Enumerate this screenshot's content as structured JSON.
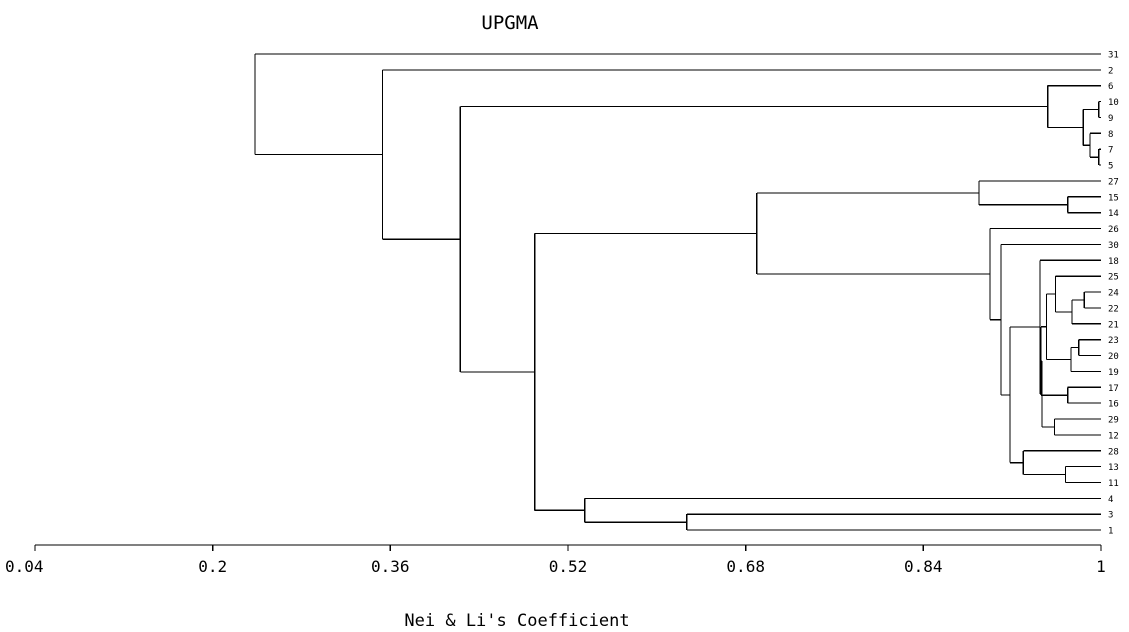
{
  "chart_data": {
    "type": "dendrogram",
    "title": "UPGMA",
    "xlabel": "Nei & Li's Coefficient",
    "xlim": [
      0.04,
      1
    ],
    "ticks": [
      0.04,
      0.2,
      0.36,
      0.52,
      0.68,
      0.84,
      1
    ],
    "tick_labels": [
      "0.04",
      "0.2",
      "0.36",
      "0.52",
      "0.68",
      "0.84",
      "1"
    ],
    "leaves": [
      "31",
      "2",
      "6",
      "10",
      "9",
      "8",
      "7",
      "5",
      "27",
      "15",
      "14",
      "26",
      "30",
      "18",
      "25",
      "24",
      "22",
      "21",
      "23",
      "20",
      "19",
      "17",
      "16",
      "29",
      "12",
      "28",
      "13",
      "11",
      "4",
      "3",
      "1"
    ],
    "tree": {
      "h": 0.238,
      "c": [
        {
          "leaf": "31"
        },
        {
          "h": 0.353,
          "c": [
            {
              "leaf": "2"
            },
            {
              "h": 0.423,
              "c": [
                {
                  "h": 0.952,
                  "c": [
                    {
                      "leaf": "6"
                    },
                    {
                      "h": 0.984,
                      "c": [
                        {
                          "h": 0.998,
                          "c": [
                            {
                              "leaf": "10"
                            },
                            {
                              "leaf": "9"
                            }
                          ]
                        },
                        {
                          "h": 0.99,
                          "c": [
                            {
                              "leaf": "8"
                            },
                            {
                              "h": 0.998,
                              "c": [
                                {
                                  "leaf": "7"
                                },
                                {
                                  "leaf": "5"
                                }
                              ]
                            }
                          ]
                        }
                      ]
                    }
                  ]
                },
                {
                  "h": 0.49,
                  "c": [
                    {
                      "h": 0.69,
                      "c": [
                        {
                          "h": 0.89,
                          "c": [
                            {
                              "leaf": "27"
                            },
                            {
                              "h": 0.97,
                              "c": [
                                {
                                  "leaf": "15"
                                },
                                {
                                  "leaf": "14"
                                }
                              ]
                            }
                          ]
                        },
                        {
                          "h": 0.9,
                          "c": [
                            {
                              "leaf": "26"
                            },
                            {
                              "h": 0.91,
                              "c": [
                                {
                                  "leaf": "30"
                                },
                                {
                                  "h": 0.918,
                                  "c": [
                                    {
                                      "h": 0.945,
                                      "c": [
                                        {
                                          "leaf": "18"
                                        },
                                        {
                                          "h": 0.947,
                                          "c": [
                                            {
                                              "h": 0.946,
                                              "c": [
                                                {
                                                  "h": 0.951,
                                                  "c": [
                                                    {
                                                      "h": 0.959,
                                                      "c": [
                                                        {
                                                          "leaf": "25"
                                                        },
                                                        {
                                                          "h": 0.974,
                                                          "c": [
                                                            {
                                                              "h": 0.985,
                                                              "c": [
                                                                {
                                                                  "leaf": "24"
                                                                },
                                                                {
                                                                  "leaf": "22"
                                                                }
                                                              ]
                                                            },
                                                            {
                                                              "leaf": "21"
                                                            }
                                                          ]
                                                        }
                                                      ]
                                                    },
                                                    {
                                                      "h": 0.973,
                                                      "c": [
                                                        {
                                                          "h": 0.98,
                                                          "c": [
                                                            {
                                                              "leaf": "23"
                                                            },
                                                            {
                                                              "leaf": "20"
                                                            }
                                                          ]
                                                        },
                                                        {
                                                          "leaf": "19"
                                                        }
                                                      ]
                                                    }
                                                  ]
                                                },
                                                {
                                                  "h": 0.97,
                                                  "c": [
                                                    {
                                                      "leaf": "17"
                                                    },
                                                    {
                                                      "leaf": "16"
                                                    }
                                                  ]
                                                }
                                              ]
                                            },
                                            {
                                              "h": 0.958,
                                              "c": [
                                                {
                                                  "leaf": "29"
                                                },
                                                {
                                                  "leaf": "12"
                                                }
                                              ]
                                            }
                                          ]
                                        }
                                      ]
                                    },
                                    {
                                      "h": 0.93,
                                      "c": [
                                        {
                                          "leaf": "28"
                                        },
                                        {
                                          "h": 0.968,
                                          "c": [
                                            {
                                              "leaf": "13"
                                            },
                                            {
                                              "leaf": "11"
                                            }
                                          ]
                                        }
                                      ]
                                    }
                                  ]
                                }
                              ]
                            }
                          ]
                        }
                      ]
                    },
                    {
                      "h": 0.535,
                      "c": [
                        {
                          "leaf": "4"
                        },
                        {
                          "h": 0.627,
                          "c": [
                            {
                              "leaf": "3"
                            },
                            {
                              "leaf": "1"
                            }
                          ]
                        }
                      ]
                    }
                  ]
                }
              ]
            }
          ]
        }
      ]
    }
  }
}
